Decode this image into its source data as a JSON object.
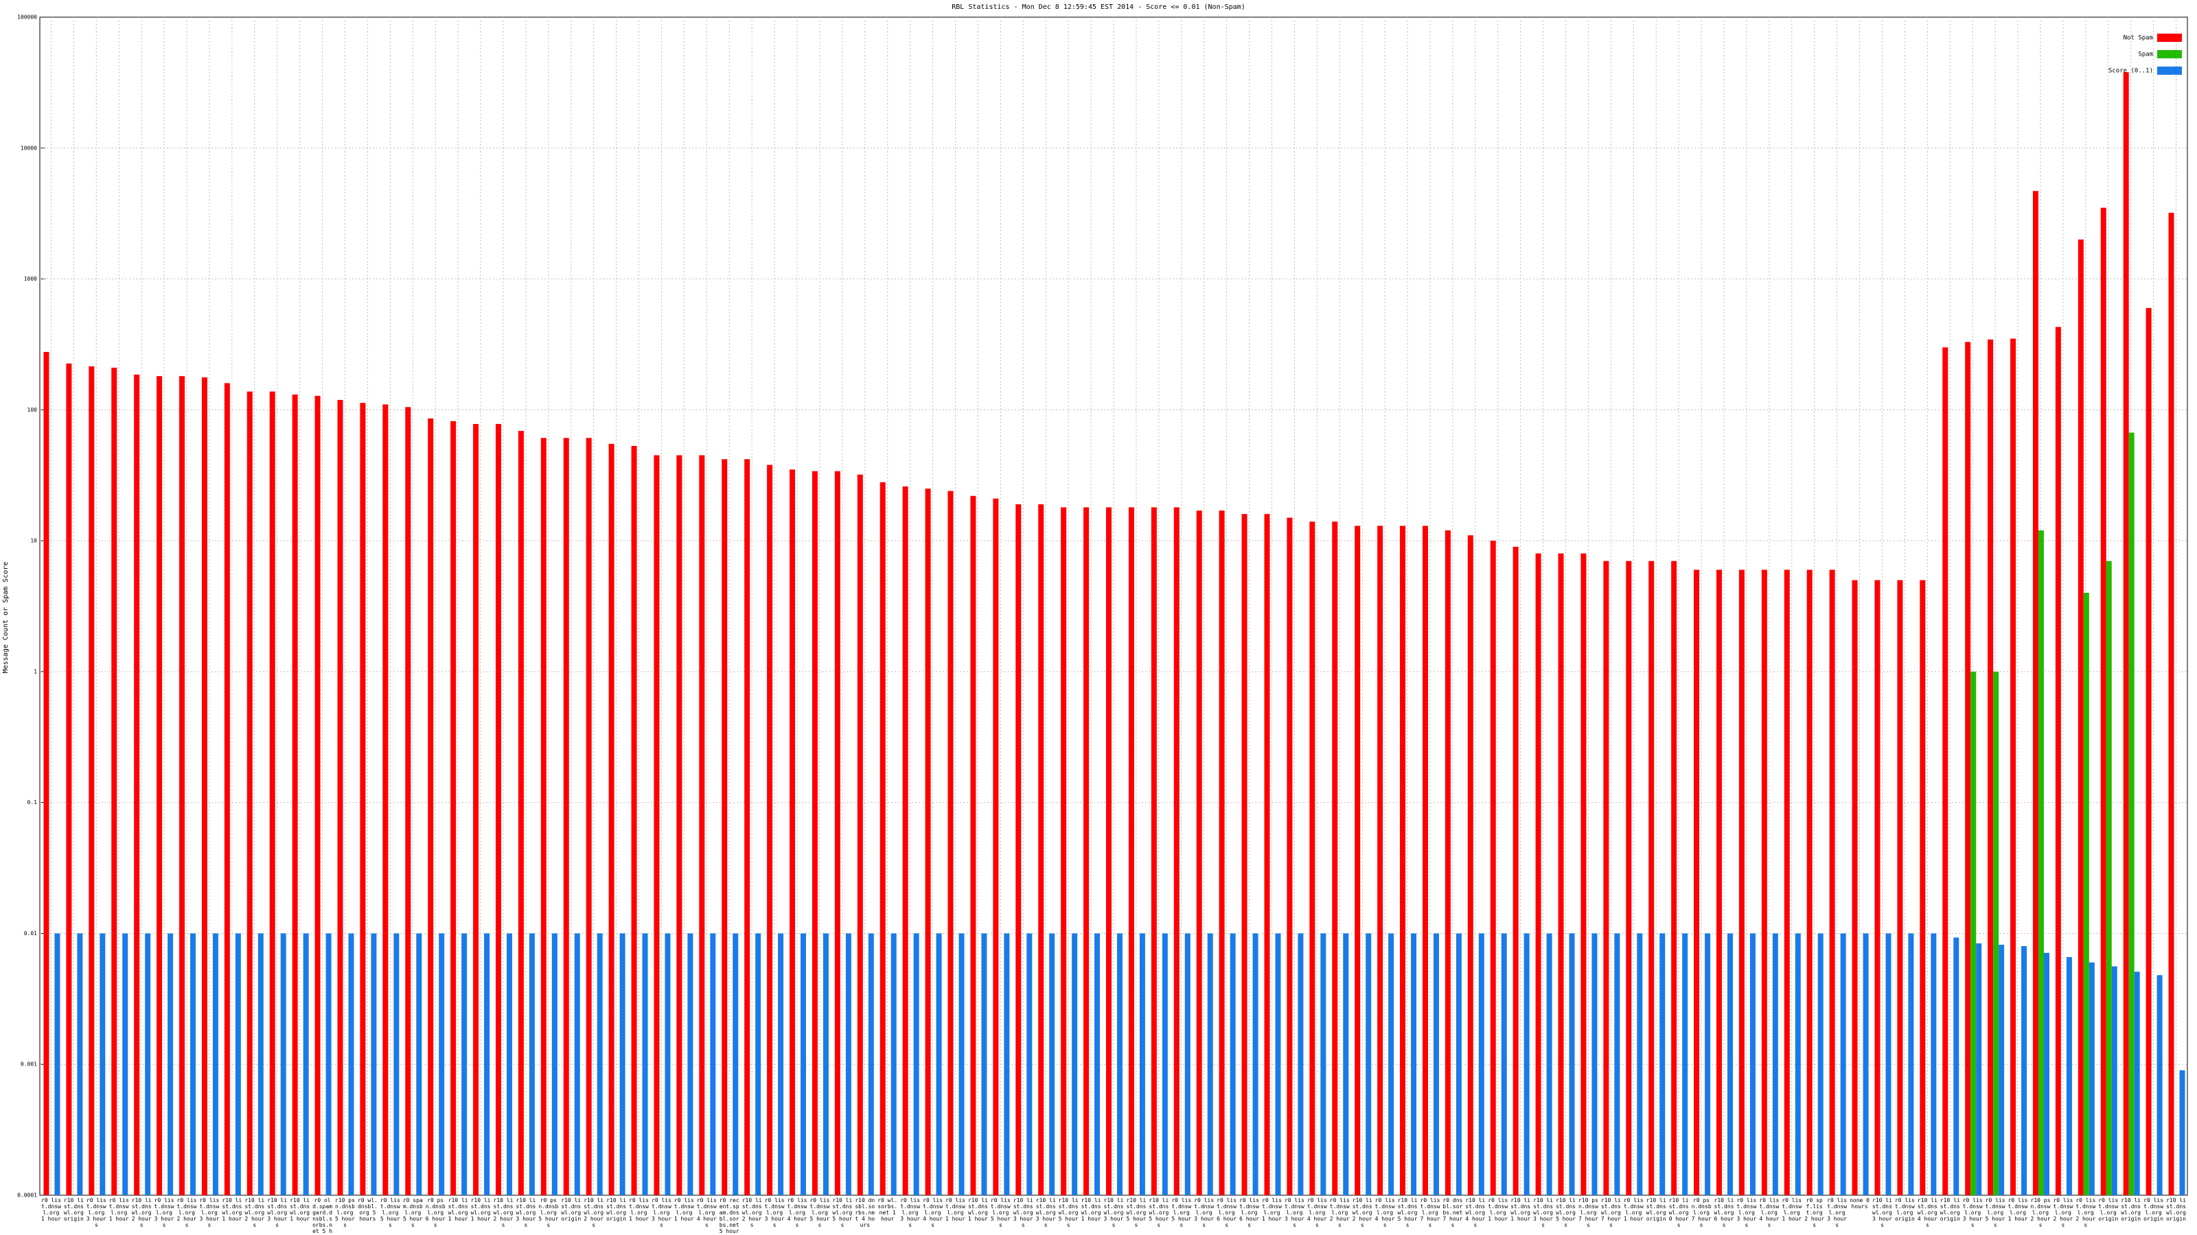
{
  "chart_data": {
    "type": "bar",
    "title": "RBL Statistics - Mon Dec  8 12:59:45 EST 2014 - Score <= 0.01 (Non-Spam)",
    "y_label": "Message Count or Spam Score",
    "log_scale": true,
    "grid": true,
    "legend": "top-right",
    "ylim": [
      0.0001,
      100000
    ],
    "yticks": [
      0.0001,
      0.001,
      0.01,
      0.1,
      1,
      10,
      100,
      1000,
      10000,
      100000
    ],
    "categories": [
      "r0 list.dnswl.org 1 hour",
      "r10 list.dnswl.org origin",
      "r0 list.dnswl.org 3 hours",
      "r0 list.dnswl.org 1 hour",
      "r10 list.dnswl.org 2 hours",
      "r0 list.dnswl.org 3 hours",
      "r0 list.dnswl.org 2 hours",
      "r0 list.dnswl.org 3 hours",
      "r10 list.dnswl.org 1 hour",
      "r10 list.dnswl.org 2 hours",
      "r10 list.dnswl.org 3 hours",
      "r10 list.dnswl.org 1 hour",
      "r0 old.spamgard.dnsbl.sorbs.net 5 hours",
      "r10 psn.dnsbl.org 5 hours",
      "r0 wl.dnsbl.org 5 hours",
      "r0 list.dnswl.org 5 hours",
      "r0 spam.dnsbl.org 5 hours",
      "r0 psn.dnsbl.org 6 hours",
      "r10 list.dnswl.org 1 hour",
      "r10 list.dnswl.org 1 hour",
      "r10 list.dnswl.org 2 hours",
      "r10 list.dnswl.org 3 hours",
      "r0 psn.dnsbl.org 5 hours",
      "r10 list.dnswl.org origin",
      "r10 list.dnswl.org 2 hours",
      "r10 list.dnswl.org origin",
      "r0 list.dnswl.org 1 hour",
      "r0 list.dnswl.org 3 hours",
      "r0 list.dnswl.org 1 hour",
      "r0 list.dnswl.org 4 hours",
      "r0 recent.spam.dnsbl.sorbs.net 5 hours",
      "r10 list.dnswl.org 2 hours",
      "r0 list.dnswl.org 3 hours",
      "r0 list.dnswl.org 4 hours",
      "r0 list.dnswl.org 5 hours",
      "r10 list.dnswl.org 5 hours",
      "r10 dnsbl.sorbs.net 4 hours",
      "r0 wl.sorbs.net 1 hour",
      "r0 list.dnswl.org 3 hours",
      "r0 list.dnswl.org 4 hours",
      "r0 list.dnswl.org 1 hour",
      "r10 list.dnswl.org 1 hour",
      "r0 list.dnswl.org 5 hours",
      "r10 list.dnswl.org 3 hours",
      "r10 list.dnswl.org 3 hours",
      "r10 list.dnswl.org 5 hours",
      "r10 list.dnswl.org 1 hour",
      "r10 list.dnswl.org 3 hours",
      "r10 list.dnswl.org 5 hours",
      "r10 list.dnswl.org 5 hours",
      "r0 list.dnswl.org 5 hours",
      "r0 list.dnswl.org 3 hours",
      "r0 list.dnswl.org 6 hours",
      "r0 list.dnswl.org 6 hours",
      "r0 list.dnswl.org 1 hour",
      "r0 list.dnswl.org 3 hours",
      "r0 list.dnswl.org 4 hours",
      "r0 list.dnswl.org 2 hours",
      "r10 list.dnswl.org 2 hours",
      "r0 list.dnswl.org 4 hours",
      "r10 list.dnswl.org 5 hours",
      "r0 list.dnswl.org 7 hours",
      "r0 dnsbl.sorbs.net 7 hours",
      "r10 list.dnswl.org 4 hours",
      "r0 list.dnswl.org 1 hour",
      "r10 list.dnswl.org 1 hour",
      "r10 list.dnswl.org 3 hours",
      "r10 list.dnswl.org 5 hours",
      "r10 psn.dnswl.org 7 hours",
      "r10 list.dnswl.org 7 hours",
      "r0 list.dnswl.org 1 hour",
      "r10 list.dnswl.org origin",
      "r10 list.dnswl.org 0 hours",
      "r0 psn.dnsbl.org 7 hours",
      "r10 list.dnswl.org 6 hours",
      "r0 list.dnswl.org 3 hours",
      "r0 list.dnswl.org 4 hours",
      "r0 list.dnswl.org 1 hour",
      "r0 spf.list.org 2 hours",
      "r0 list.dnswl.org 3 hours",
      "none 0 hours",
      "r10 list.dnswl.org 3 hours",
      "r0 list.dnswl.org origin",
      "r10 list.dnswl.org 4 hours",
      "r10 list.dnswl.org origin",
      "r0 list.dnswl.org 3 hours",
      "r0 list.dnswl.org 5 hours",
      "r0 list.dnswl.org 1 hour",
      "r10 psn.dnswl.org 2 hours",
      "r0 list.dnswl.org 2 hours",
      "r0 list.dnswl.org 2 hours",
      "r0 list.dnswl.org origin",
      "r10 list.dnswl.org origin",
      "r0 list.dnswl.org origin",
      "r10 list.dnswl.org origin"
    ],
    "series": [
      {
        "name": "Not Spam",
        "color": "#ff0000",
        "values": [
          277,
          226,
          215,
          210,
          186,
          181,
          181,
          177,
          160,
          138,
          138,
          131,
          128,
          119,
          113,
          110,
          105,
          86,
          82,
          78,
          78,
          69,
          61,
          61,
          61,
          55,
          53,
          45,
          45,
          45,
          42,
          42,
          38,
          35,
          34,
          34,
          32,
          28,
          26,
          25,
          24,
          22,
          21,
          19,
          19,
          18,
          18,
          18,
          18,
          18,
          18,
          17,
          17,
          16,
          16,
          15,
          14,
          14,
          13,
          13,
          13,
          13,
          12,
          11,
          10,
          9,
          8,
          8,
          8,
          7,
          7,
          7,
          7,
          6,
          6,
          6,
          6,
          6,
          6,
          6,
          5,
          5,
          5,
          5,
          300,
          330,
          345,
          350,
          4700,
          430,
          2000,
          3500,
          38000,
          600,
          3200
        ]
      },
      {
        "name": "Spam",
        "color": "#22bb00",
        "values": [
          null,
          null,
          null,
          null,
          null,
          null,
          null,
          null,
          null,
          null,
          null,
          null,
          null,
          null,
          null,
          null,
          null,
          null,
          null,
          null,
          null,
          null,
          null,
          null,
          null,
          null,
          null,
          null,
          null,
          null,
          null,
          null,
          null,
          null,
          null,
          null,
          null,
          null,
          null,
          null,
          null,
          null,
          null,
          null,
          null,
          null,
          null,
          null,
          null,
          null,
          null,
          null,
          null,
          null,
          null,
          null,
          null,
          null,
          null,
          null,
          null,
          null,
          null,
          null,
          null,
          null,
          null,
          null,
          null,
          null,
          null,
          null,
          null,
          null,
          null,
          null,
          null,
          null,
          null,
          null,
          null,
          null,
          null,
          null,
          null,
          1,
          1,
          null,
          12,
          null,
          4,
          7,
          67,
          null,
          null
        ]
      },
      {
        "name": "Score (0..1)",
        "color": "#1a7be8",
        "values": [
          0.01,
          0.01,
          0.01,
          0.01,
          0.01,
          0.01,
          0.01,
          0.01,
          0.01,
          0.01,
          0.01,
          0.01,
          0.01,
          0.01,
          0.01,
          0.01,
          0.01,
          0.01,
          0.01,
          0.01,
          0.01,
          0.01,
          0.01,
          0.01,
          0.01,
          0.01,
          0.01,
          0.01,
          0.01,
          0.01,
          0.01,
          0.01,
          0.01,
          0.01,
          0.01,
          0.01,
          0.01,
          0.01,
          0.01,
          0.01,
          0.01,
          0.01,
          0.01,
          0.01,
          0.01,
          0.01,
          0.01,
          0.01,
          0.01,
          0.01,
          0.01,
          0.01,
          0.01,
          0.01,
          0.01,
          0.01,
          0.01,
          0.01,
          0.01,
          0.01,
          0.01,
          0.01,
          0.01,
          0.01,
          0.01,
          0.01,
          0.01,
          0.01,
          0.01,
          0.01,
          0.01,
          0.01,
          0.01,
          0.01,
          0.01,
          0.01,
          0.01,
          0.01,
          0.01,
          0.01,
          0.01,
          0.01,
          0.01,
          0.01,
          0.0093,
          0.0084,
          0.0082,
          0.008,
          0.0071,
          0.0066,
          0.006,
          0.0056,
          0.0051,
          0.0048,
          0.0009
        ]
      }
    ]
  }
}
